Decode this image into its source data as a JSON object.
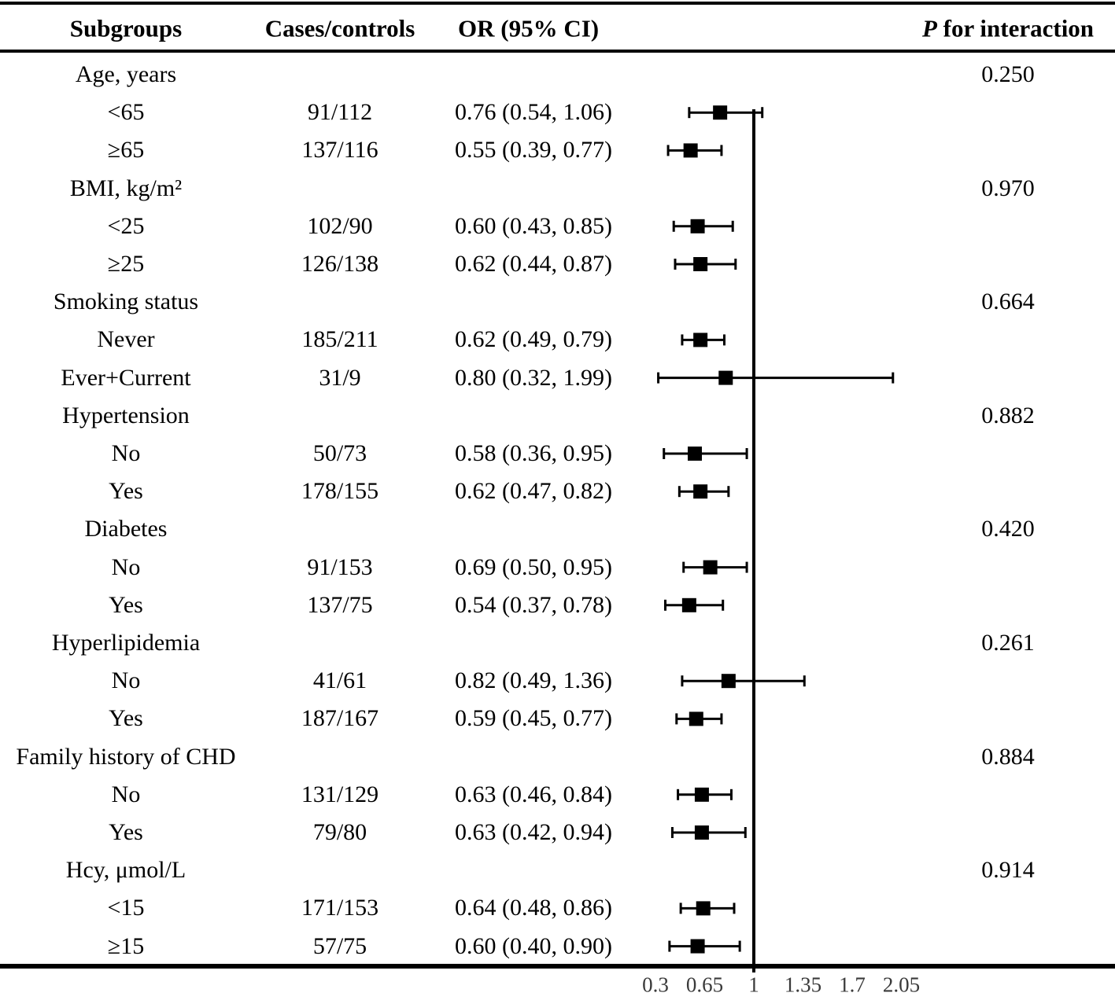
{
  "header": {
    "subgroups": "Subgroups",
    "cases_controls": "Cases/controls",
    "or_ci": "OR (95% CI)",
    "p_italic": "P",
    "p_rest": " for interaction"
  },
  "chart_data": {
    "type": "scatter",
    "variant": "forest-plot",
    "title": "",
    "xlabel": "",
    "ylabel": "",
    "x_axis": {
      "tick_labels": [
        "0.3",
        "0.65",
        "1",
        "1.35",
        "1.7",
        "2.05"
      ],
      "tick_values": [
        0.3,
        0.65,
        1,
        1.35,
        1.7,
        2.05
      ],
      "reference_line": 1,
      "range": [
        0.3,
        2.05
      ]
    },
    "marker": {
      "shape": "square",
      "color": "#000000"
    },
    "groups": [
      {
        "label": "Age, years",
        "p_for_interaction": "0.250",
        "rows": [
          {
            "label": "<65",
            "cases_controls": "91/112",
            "or_ci_text": "0.76 (0.54, 1.06)",
            "or": 0.76,
            "ci": [
              0.54,
              1.06
            ]
          },
          {
            "label": "≥65",
            "cases_controls": "137/116",
            "or_ci_text": "0.55 (0.39, 0.77)",
            "or": 0.55,
            "ci": [
              0.39,
              0.77
            ]
          }
        ]
      },
      {
        "label": "BMI, kg/m²",
        "p_for_interaction": "0.970",
        "rows": [
          {
            "label": "<25",
            "cases_controls": "102/90",
            "or_ci_text": "0.60 (0.43, 0.85)",
            "or": 0.6,
            "ci": [
              0.43,
              0.85
            ]
          },
          {
            "label": "≥25",
            "cases_controls": "126/138",
            "or_ci_text": "0.62 (0.44, 0.87)",
            "or": 0.62,
            "ci": [
              0.44,
              0.87
            ]
          }
        ]
      },
      {
        "label": "Smoking status",
        "p_for_interaction": "0.664",
        "rows": [
          {
            "label": "Never",
            "cases_controls": "185/211",
            "or_ci_text": "0.62 (0.49, 0.79)",
            "or": 0.62,
            "ci": [
              0.49,
              0.79
            ]
          },
          {
            "label": "Ever+Current",
            "cases_controls": "31/9",
            "or_ci_text": "0.80 (0.32, 1.99)",
            "or": 0.8,
            "ci": [
              0.32,
              1.99
            ]
          }
        ]
      },
      {
        "label": "Hypertension",
        "p_for_interaction": "0.882",
        "rows": [
          {
            "label": "No",
            "cases_controls": "50/73",
            "or_ci_text": "0.58 (0.36, 0.95)",
            "or": 0.58,
            "ci": [
              0.36,
              0.95
            ]
          },
          {
            "label": "Yes",
            "cases_controls": "178/155",
            "or_ci_text": "0.62 (0.47, 0.82)",
            "or": 0.62,
            "ci": [
              0.47,
              0.82
            ]
          }
        ]
      },
      {
        "label": "Diabetes",
        "p_for_interaction": "0.420",
        "rows": [
          {
            "label": "No",
            "cases_controls": "91/153",
            "or_ci_text": "0.69 (0.50, 0.95)",
            "or": 0.69,
            "ci": [
              0.5,
              0.95
            ]
          },
          {
            "label": "Yes",
            "cases_controls": "137/75",
            "or_ci_text": "0.54 (0.37, 0.78)",
            "or": 0.54,
            "ci": [
              0.37,
              0.78
            ]
          }
        ]
      },
      {
        "label": "Hyperlipidemia",
        "p_for_interaction": "0.261",
        "rows": [
          {
            "label": "No",
            "cases_controls": "41/61",
            "or_ci_text": "0.82 (0.49, 1.36)",
            "or": 0.82,
            "ci": [
              0.49,
              1.36
            ]
          },
          {
            "label": "Yes",
            "cases_controls": "187/167",
            "or_ci_text": "0.59 (0.45, 0.77)",
            "or": 0.59,
            "ci": [
              0.45,
              0.77
            ]
          }
        ]
      },
      {
        "label": "Family history of CHD",
        "p_for_interaction": "0.884",
        "rows": [
          {
            "label": "No",
            "cases_controls": "131/129",
            "or_ci_text": "0.63 (0.46, 0.84)",
            "or": 0.63,
            "ci": [
              0.46,
              0.84
            ]
          },
          {
            "label": "Yes",
            "cases_controls": "79/80",
            "or_ci_text": "0.63 (0.42, 0.94)",
            "or": 0.63,
            "ci": [
              0.42,
              0.94
            ]
          }
        ]
      },
      {
        "label": "Hcy, μmol/L",
        "p_for_interaction": "0.914",
        "rows": [
          {
            "label": "<15",
            "cases_controls": "171/153",
            "or_ci_text": "0.64 (0.48, 0.86)",
            "or": 0.64,
            "ci": [
              0.48,
              0.86
            ]
          },
          {
            "label": "≥15",
            "cases_controls": "57/75",
            "or_ci_text": "0.60 (0.40, 0.90)",
            "or": 0.6,
            "ci": [
              0.4,
              0.9
            ]
          }
        ]
      }
    ]
  }
}
